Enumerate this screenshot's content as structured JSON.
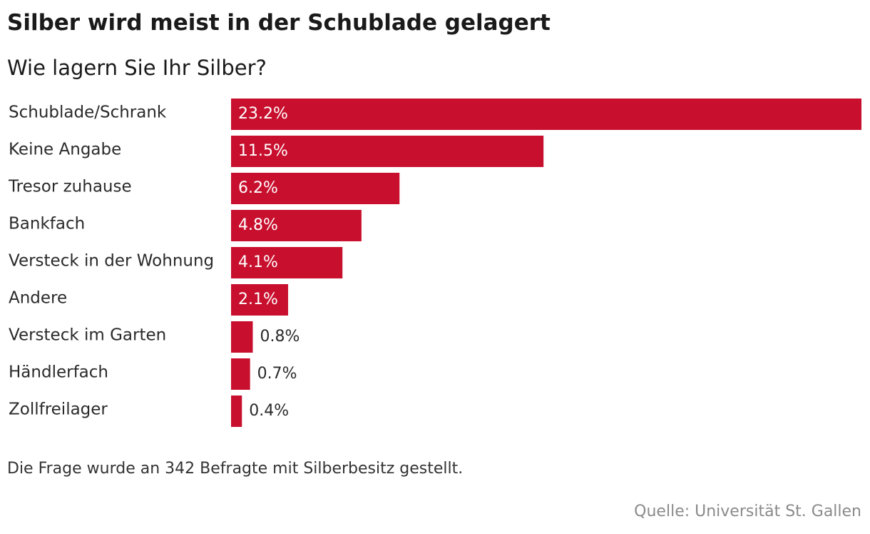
{
  "chart_data": {
    "type": "bar",
    "orientation": "horizontal",
    "title": "Silber wird meist in der Schublade gelagert",
    "subtitle": "Wie lagern Sie Ihr Silber?",
    "categories": [
      "Schublade/Schrank",
      "Keine Angabe",
      "Tresor zuhause",
      "Bankfach",
      "Versteck in der Wohnung",
      "Andere",
      "Versteck im Garten",
      "Händlerfach",
      "Zollfreilager"
    ],
    "values": [
      23.2,
      11.5,
      6.2,
      4.8,
      4.1,
      2.1,
      0.8,
      0.7,
      0.4
    ],
    "value_labels": [
      "23.2%",
      "11.5%",
      "6.2%",
      "4.8%",
      "4.1%",
      "2.1%",
      "0.8%",
      "0.7%",
      "0.4%"
    ],
    "unit": "%",
    "xlim": [
      0,
      23.2
    ],
    "grid": false,
    "bar_color": "#c8102e",
    "note": "Die Frage wurde an 342 Befragte mit Silberbesitz gestellt.",
    "source": "Quelle: Universität St. Gallen"
  }
}
